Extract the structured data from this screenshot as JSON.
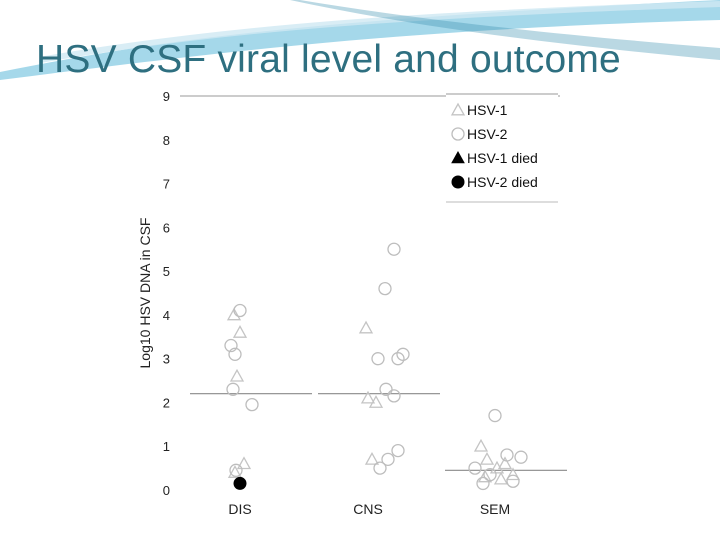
{
  "slide": {
    "title": "HSV CSF viral level and outcome",
    "accent_color": "#2e6f80",
    "swoosh_color": "#5bb8d9"
  },
  "chart_data": {
    "type": "scatter",
    "title": "",
    "xlabel": "",
    "ylabel": "Log10 HSV DNA in CSF",
    "ylim": [
      0,
      9
    ],
    "yticks": [
      "0",
      "1",
      "2",
      "3",
      "4",
      "5",
      "6",
      "7",
      "8",
      "9"
    ],
    "categories": [
      "DIS",
      "CNS",
      "SEM"
    ],
    "grid": false,
    "legend_placement": "top-right",
    "legend": [
      {
        "label": "HSV-1",
        "marker": "open-triangle"
      },
      {
        "label": "HSV-2",
        "marker": "open-circle"
      },
      {
        "label": "HSV-1 died",
        "marker": "filled-triangle"
      },
      {
        "label": "HSV-2 died",
        "marker": "filled-circle"
      }
    ],
    "medians": {
      "DIS": 2.2,
      "CNS": 2.2,
      "SEM": 0.45
    },
    "series": [
      {
        "marker": "open-triangle",
        "points": [
          {
            "category": "DIS",
            "jitter": -0.06,
            "y": 4.0
          },
          {
            "category": "DIS",
            "jitter": 0.0,
            "y": 3.6
          },
          {
            "category": "DIS",
            "jitter": -0.03,
            "y": 2.6
          },
          {
            "category": "DIS",
            "jitter": 0.04,
            "y": 0.6
          },
          {
            "category": "DIS",
            "jitter": -0.05,
            "y": 0.4
          },
          {
            "category": "CNS",
            "jitter": -0.02,
            "y": 3.7
          },
          {
            "category": "CNS",
            "jitter": 0.0,
            "y": 2.1
          },
          {
            "category": "CNS",
            "jitter": 0.08,
            "y": 2.0
          },
          {
            "category": "CNS",
            "jitter": 0.04,
            "y": 0.7
          },
          {
            "category": "SEM",
            "jitter": -0.14,
            "y": 1.0
          },
          {
            "category": "SEM",
            "jitter": -0.08,
            "y": 0.7
          },
          {
            "category": "SEM",
            "jitter": 0.02,
            "y": 0.5
          },
          {
            "category": "SEM",
            "jitter": 0.1,
            "y": 0.6
          },
          {
            "category": "SEM",
            "jitter": -0.1,
            "y": 0.3
          },
          {
            "category": "SEM",
            "jitter": 0.06,
            "y": 0.25
          },
          {
            "category": "SEM",
            "jitter": 0.18,
            "y": 0.35
          }
        ]
      },
      {
        "marker": "open-circle",
        "points": [
          {
            "category": "DIS",
            "jitter": 0.0,
            "y": 4.1
          },
          {
            "category": "DIS",
            "jitter": -0.09,
            "y": 3.3
          },
          {
            "category": "DIS",
            "jitter": -0.05,
            "y": 3.1
          },
          {
            "category": "DIS",
            "jitter": -0.07,
            "y": 2.3
          },
          {
            "category": "DIS",
            "jitter": 0.12,
            "y": 1.95
          },
          {
            "category": "DIS",
            "jitter": -0.04,
            "y": 0.45
          },
          {
            "category": "CNS",
            "jitter": 0.26,
            "y": 5.5
          },
          {
            "category": "CNS",
            "jitter": 0.17,
            "y": 4.6
          },
          {
            "category": "CNS",
            "jitter": 0.1,
            "y": 3.0
          },
          {
            "category": "CNS",
            "jitter": 0.3,
            "y": 3.0
          },
          {
            "category": "CNS",
            "jitter": 0.35,
            "y": 3.1
          },
          {
            "category": "CNS",
            "jitter": 0.18,
            "y": 2.3
          },
          {
            "category": "CNS",
            "jitter": 0.26,
            "y": 2.15
          },
          {
            "category": "CNS",
            "jitter": 0.3,
            "y": 0.9
          },
          {
            "category": "CNS",
            "jitter": 0.12,
            "y": 0.5
          },
          {
            "category": "CNS",
            "jitter": 0.2,
            "y": 0.7
          },
          {
            "category": "SEM",
            "jitter": 0.0,
            "y": 1.7
          },
          {
            "category": "SEM",
            "jitter": 0.12,
            "y": 0.8
          },
          {
            "category": "SEM",
            "jitter": 0.26,
            "y": 0.75
          },
          {
            "category": "SEM",
            "jitter": -0.2,
            "y": 0.5
          },
          {
            "category": "SEM",
            "jitter": -0.05,
            "y": 0.35
          },
          {
            "category": "SEM",
            "jitter": 0.18,
            "y": 0.2
          },
          {
            "category": "SEM",
            "jitter": -0.12,
            "y": 0.15
          }
        ]
      },
      {
        "marker": "filled-circle",
        "points": [
          {
            "category": "DIS",
            "jitter": 0.0,
            "y": 0.15
          }
        ]
      }
    ]
  }
}
